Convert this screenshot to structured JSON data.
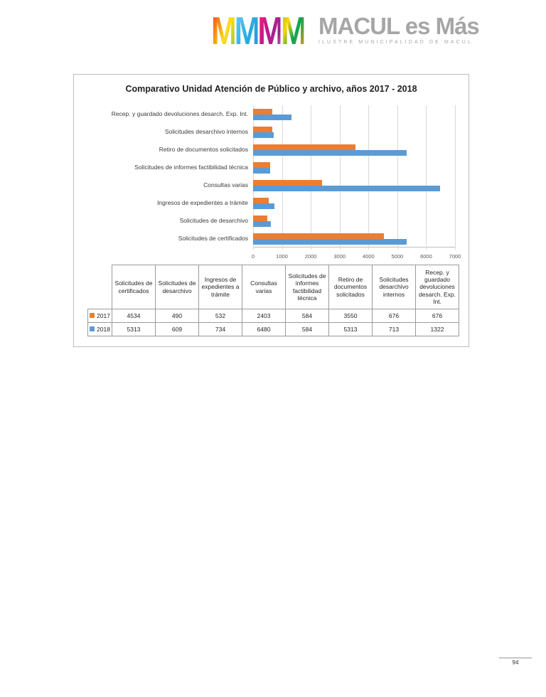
{
  "logo": {
    "m_letters": [
      "M",
      "M",
      "M",
      "M"
    ],
    "title": "MACUL es Más",
    "subtitle": "ILUSTRE MUNICIPALIDAD DE MACUL"
  },
  "chart_data": {
    "type": "bar",
    "orientation": "horizontal",
    "title": "Comparativo Unidad Atención de Público y archivo, años 2017 - 2018",
    "categories": [
      "Solicitudes de certificados",
      "Solicitudes de desarchivo",
      "Ingresos de expedientes a trámite",
      "Consultas varias",
      "Solicitudes de informes factibilidad técnica",
      "Retiro de documentos solicitados",
      "Solicitudes desarchivo internos",
      "Recep. y guardado devoluciones desarch. Exp. Int."
    ],
    "series": [
      {
        "name": "2017",
        "color": "#ED7D31",
        "values": [
          4534,
          490,
          532,
          2403,
          584,
          3550,
          676,
          676
        ]
      },
      {
        "name": "2018",
        "color": "#5B9BD5",
        "values": [
          5313,
          609,
          734,
          6480,
          584,
          5313,
          713,
          1322
        ]
      }
    ],
    "xlabel": "",
    "ylabel": "",
    "xlim": [
      0,
      7000
    ],
    "x_ticks": [
      "0",
      "1000",
      "2000",
      "3000",
      "4000",
      "5000",
      "6000",
      "7000"
    ],
    "grid": true,
    "legend_position": "in data table below chart"
  },
  "table": {
    "headers": [
      "Solicitudes de certificados",
      "Solicitudes de desarchivo",
      "Ingresos de expedientes a trámite",
      "Consultas varias",
      "Solicitudes de informes factibilidad técnica",
      "Retiro de documentos solicitados",
      "Solicitudes desarchivo internos",
      "Recep. y guardado devoluciones desarch. Exp. Int."
    ],
    "rows": [
      {
        "year": "2017",
        "marker_color": "#ED7D31",
        "values": [
          "4534",
          "490",
          "532",
          "2403",
          "584",
          "3550",
          "676",
          "676"
        ]
      },
      {
        "year": "2018",
        "marker_color": "#5B9BD5",
        "values": [
          "5313",
          "609",
          "734",
          "6480",
          "584",
          "5313",
          "713",
          "1322"
        ]
      }
    ]
  },
  "colors": {
    "series_2017": "#ED7D31",
    "series_2018": "#5B9BD5",
    "gridline": "#D9D9D9",
    "panel_border": "#BDBDBD",
    "logo_gray": "#A6A6A6"
  },
  "footer": {
    "page_number": "94"
  }
}
